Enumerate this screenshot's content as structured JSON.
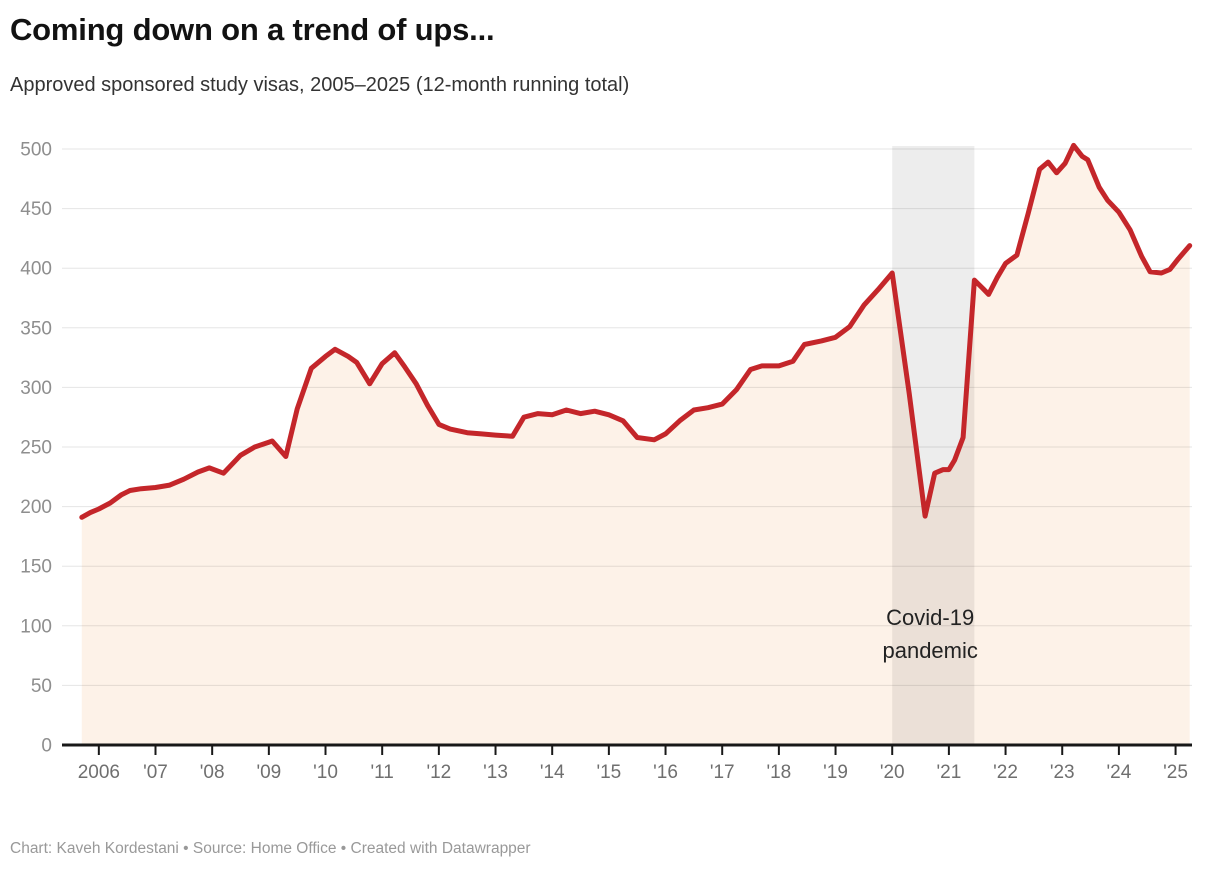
{
  "header": {
    "title": "Coming down on a trend of ups...",
    "subtitle": "Approved sponsored study visas, 2005–2025 (12-month running total)"
  },
  "footer": {
    "text": "Chart: Kaveh Kordestani • Source: Home Office • Created with Datawrapper"
  },
  "chart_data": {
    "type": "area",
    "title": "Coming down on a trend of ups...",
    "subtitle": "Approved sponsored study visas, 2005–2025 (12-month running total)",
    "xlabel": "",
    "ylabel": "",
    "x_domain": [
      2005.35,
      2025.29
    ],
    "y_domain": [
      0,
      500
    ],
    "grid": "horizontal",
    "legend_position": "none",
    "y_ticks": [
      0,
      50,
      100,
      150,
      200,
      250,
      300,
      350,
      400,
      450,
      500
    ],
    "x_ticks": [
      {
        "year": 2006,
        "label": "2006"
      },
      {
        "year": 2007,
        "label": "'07"
      },
      {
        "year": 2008,
        "label": "'08"
      },
      {
        "year": 2009,
        "label": "'09"
      },
      {
        "year": 2010,
        "label": "'10"
      },
      {
        "year": 2011,
        "label": "'11"
      },
      {
        "year": 2012,
        "label": "'12"
      },
      {
        "year": 2013,
        "label": "'13"
      },
      {
        "year": 2014,
        "label": "'14"
      },
      {
        "year": 2015,
        "label": "'15"
      },
      {
        "year": 2016,
        "label": "'16"
      },
      {
        "year": 2017,
        "label": "'17"
      },
      {
        "year": 2018,
        "label": "'18"
      },
      {
        "year": 2019,
        "label": "'19"
      },
      {
        "year": 2020,
        "label": "'20"
      },
      {
        "year": 2021,
        "label": "'21"
      },
      {
        "year": 2022,
        "label": "'22"
      },
      {
        "year": 2023,
        "label": "'23"
      },
      {
        "year": 2024,
        "label": "'24"
      },
      {
        "year": 2025,
        "label": "'25"
      }
    ],
    "series": [
      {
        "name": "Approved sponsored study visas, 12-month running total (thousands)",
        "points": [
          [
            2005.7,
            191
          ],
          [
            2005.85,
            195
          ],
          [
            2006.0,
            198
          ],
          [
            2006.2,
            203
          ],
          [
            2006.4,
            210
          ],
          [
            2006.55,
            213.5
          ],
          [
            2006.75,
            215
          ],
          [
            2007.0,
            216
          ],
          [
            2007.25,
            218
          ],
          [
            2007.5,
            223
          ],
          [
            2007.75,
            229
          ],
          [
            2007.95,
            232.5
          ],
          [
            2008.2,
            228
          ],
          [
            2008.5,
            243
          ],
          [
            2008.75,
            250
          ],
          [
            2009.0,
            254
          ],
          [
            2009.06,
            255
          ],
          [
            2009.3,
            242
          ],
          [
            2009.5,
            282
          ],
          [
            2009.75,
            316
          ],
          [
            2010.0,
            326
          ],
          [
            2010.17,
            332
          ],
          [
            2010.4,
            326
          ],
          [
            2010.55,
            321
          ],
          [
            2010.78,
            303
          ],
          [
            2011.0,
            320
          ],
          [
            2011.22,
            329
          ],
          [
            2011.4,
            317
          ],
          [
            2011.6,
            303
          ],
          [
            2011.8,
            285
          ],
          [
            2012.0,
            269
          ],
          [
            2012.2,
            265
          ],
          [
            2012.5,
            262
          ],
          [
            2012.75,
            261
          ],
          [
            2013.0,
            260
          ],
          [
            2013.3,
            259
          ],
          [
            2013.5,
            275
          ],
          [
            2013.75,
            278
          ],
          [
            2014.0,
            277
          ],
          [
            2014.25,
            281
          ],
          [
            2014.5,
            278
          ],
          [
            2014.75,
            280
          ],
          [
            2015.0,
            277
          ],
          [
            2015.25,
            272
          ],
          [
            2015.5,
            258
          ],
          [
            2015.8,
            256
          ],
          [
            2016.0,
            261
          ],
          [
            2016.25,
            272
          ],
          [
            2016.5,
            281
          ],
          [
            2016.75,
            283
          ],
          [
            2017.0,
            286
          ],
          [
            2017.25,
            298
          ],
          [
            2017.5,
            315
          ],
          [
            2017.7,
            318
          ],
          [
            2018.0,
            318
          ],
          [
            2018.25,
            322
          ],
          [
            2018.45,
            336
          ],
          [
            2018.75,
            339
          ],
          [
            2019.0,
            342
          ],
          [
            2019.25,
            351
          ],
          [
            2019.5,
            369
          ],
          [
            2019.75,
            382
          ],
          [
            2020.0,
            396
          ],
          [
            2020.3,
            295
          ],
          [
            2020.58,
            192
          ],
          [
            2020.75,
            228
          ],
          [
            2020.9,
            231
          ],
          [
            2021.0,
            231
          ],
          [
            2021.1,
            239
          ],
          [
            2021.25,
            258
          ],
          [
            2021.45,
            390
          ],
          [
            2021.6,
            383
          ],
          [
            2021.7,
            378
          ],
          [
            2021.85,
            392
          ],
          [
            2022.0,
            404
          ],
          [
            2022.2,
            411
          ],
          [
            2022.4,
            446
          ],
          [
            2022.6,
            483
          ],
          [
            2022.75,
            489
          ],
          [
            2022.9,
            480
          ],
          [
            2023.05,
            488
          ],
          [
            2023.2,
            503
          ],
          [
            2023.35,
            494
          ],
          [
            2023.45,
            491
          ],
          [
            2023.65,
            468
          ],
          [
            2023.8,
            457
          ],
          [
            2024.0,
            447
          ],
          [
            2024.2,
            432
          ],
          [
            2024.4,
            410
          ],
          [
            2024.55,
            397
          ],
          [
            2024.75,
            396
          ],
          [
            2024.9,
            399
          ],
          [
            2025.05,
            408
          ],
          [
            2025.25,
            419
          ]
        ]
      }
    ],
    "annotations": {
      "covid_band": {
        "from": 2020.0,
        "to": 2021.45,
        "label_line1": "Covid-19",
        "label_line2": "pandemic",
        "label_center_year": 2020.67
      }
    },
    "colors": {
      "line": "#c4262a",
      "area": "#fdf2e8",
      "grid": "rgba(0,0,0,0.10)",
      "band": "rgba(0,0,0,0.072)",
      "axis": "#181818",
      "x_tick_label": "#6f6f6f",
      "y_tick_label": "#8e8e8e",
      "annotation": "#222222"
    }
  }
}
